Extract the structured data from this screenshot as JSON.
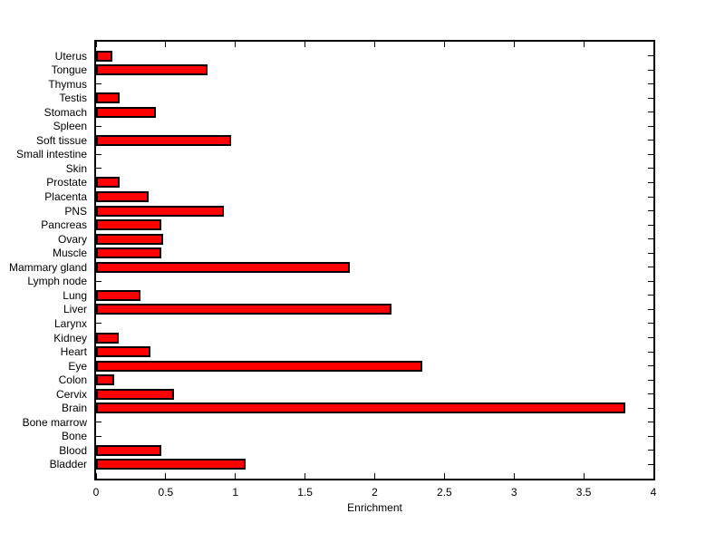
{
  "chart_data": {
    "type": "bar",
    "orientation": "horizontal",
    "title": "",
    "xlabel": "Enrichment",
    "ylabel": "",
    "categories": [
      "Uterus",
      "Tongue",
      "Thymus",
      "Testis",
      "Stomach",
      "Spleen",
      "Soft tissue",
      "Small intestine",
      "Skin",
      "Prostate",
      "Placenta",
      "PNS",
      "Pancreas",
      "Ovary",
      "Muscle",
      "Mammary gland",
      "Lymph node",
      "Lung",
      "Liver",
      "Larynx",
      "Kidney",
      "Heart",
      "Eye",
      "Colon",
      "Cervix",
      "Brain",
      "Bone marrow",
      "Bone",
      "Blood",
      "Bladder"
    ],
    "values": [
      0.12,
      0.8,
      0,
      0.17,
      0.43,
      0,
      0.97,
      0,
      0,
      0.17,
      0.38,
      0.92,
      0.47,
      0.48,
      0.47,
      1.82,
      0,
      0.32,
      2.12,
      0,
      0.16,
      0.39,
      2.34,
      0.13,
      0.56,
      3.8,
      0,
      0,
      0.47,
      1.07
    ],
    "xlim": [
      0,
      4
    ],
    "xticks": [
      0,
      0.5,
      1,
      1.5,
      2,
      2.5,
      3,
      3.5,
      4
    ],
    "xticklabels": [
      "0",
      "0.5",
      "1",
      "1.5",
      "2",
      "2.5",
      "3",
      "3.5",
      "4"
    ],
    "grid": false,
    "legend": false,
    "bar_color": "#ff0000",
    "bar_edge_color": "#000000",
    "axis_color": "#000000",
    "background_color": "#ffffff"
  }
}
